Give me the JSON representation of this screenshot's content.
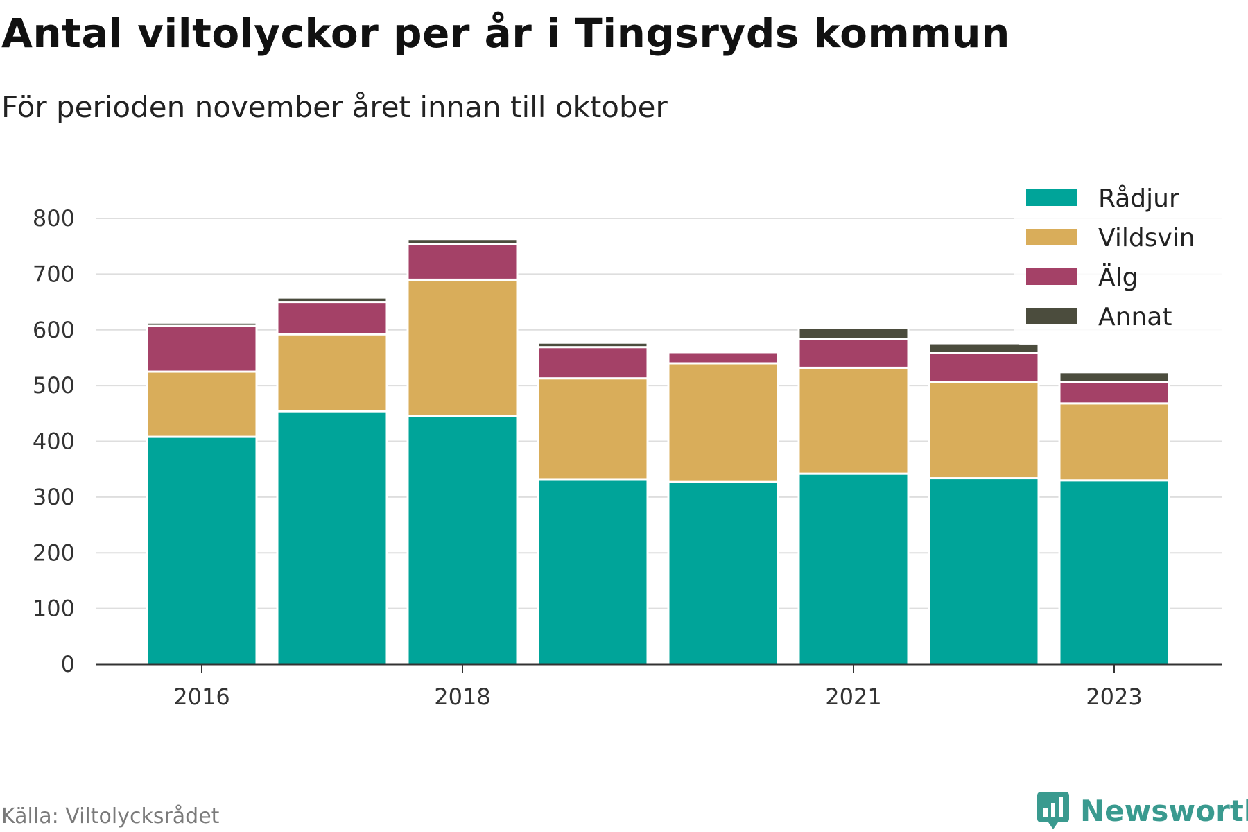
{
  "title": "Antal viltolyckor per år i Tingsryds kommun",
  "subtitle": "För perioden november året innan till oktober",
  "source": "Källa: Viltolycksrådet",
  "brand": "Newsworthy",
  "colors": {
    "Rådjur": "#00a499",
    "Vildsvin": "#d9ad5a",
    "Älg": "#a44167",
    "Annat": "#4b4c3d",
    "grid": "#dedede",
    "axis": "#333333",
    "brand": "#3a9a8f"
  },
  "chart_data": {
    "type": "bar",
    "stacked": true,
    "categories": [
      "2016",
      "2017",
      "2018",
      "2019",
      "2020",
      "2021",
      "2022",
      "2023"
    ],
    "x_tick_labels": [
      "2016",
      "",
      "2018",
      "",
      "",
      "2021",
      "",
      "2023"
    ],
    "series": [
      {
        "name": "Rådjur",
        "values": [
          408,
          454,
          446,
          331,
          327,
          342,
          334,
          330
        ]
      },
      {
        "name": "Vildsvin",
        "values": [
          117,
          138,
          244,
          182,
          213,
          190,
          173,
          138
        ]
      },
      {
        "name": "Älg",
        "values": [
          82,
          58,
          64,
          56,
          20,
          51,
          52,
          38
        ]
      },
      {
        "name": "Annat",
        "values": [
          6,
          8,
          9,
          8,
          3,
          20,
          17,
          18
        ]
      }
    ],
    "ylim": [
      0,
      800
    ],
    "yticks": [
      0,
      100,
      200,
      300,
      400,
      500,
      600,
      700,
      800
    ],
    "grid": true,
    "legend_position": "top-right",
    "xlabel": "",
    "ylabel": ""
  }
}
